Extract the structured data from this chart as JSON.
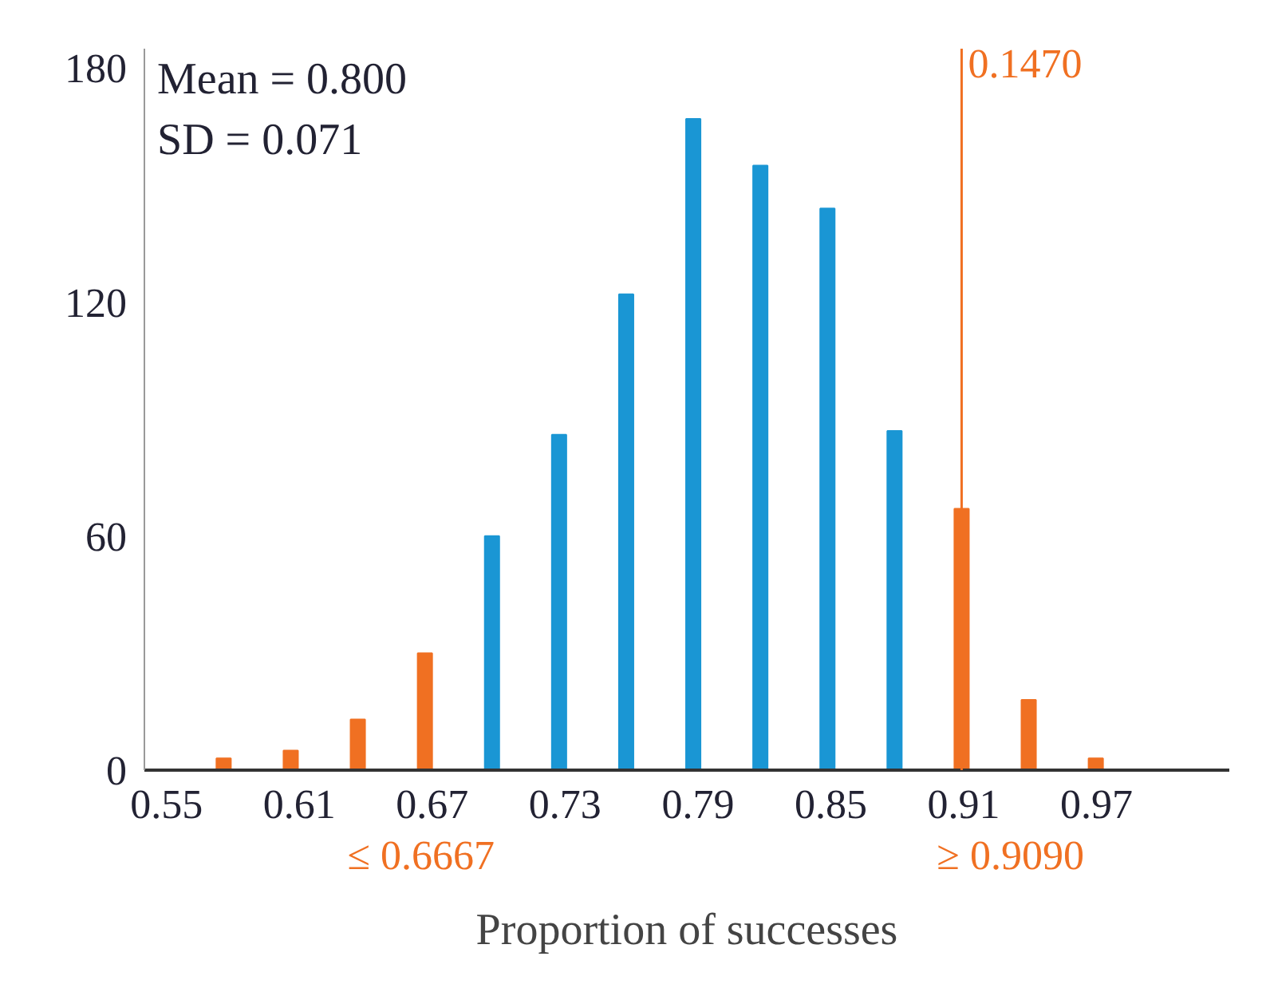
{
  "chart_data": {
    "type": "bar",
    "xlabel": "Proportion of successes",
    "x": [
      0.5758,
      0.6061,
      0.6364,
      0.6667,
      0.697,
      0.7273,
      0.7576,
      0.7879,
      0.8182,
      0.8485,
      0.8788,
      0.9091,
      0.9394,
      0.9697
    ],
    "values": [
      3,
      5,
      13,
      30,
      60,
      86,
      122,
      167,
      155,
      144,
      87,
      67,
      18,
      3
    ],
    "colors": [
      "#f07022",
      "#f07022",
      "#f07022",
      "#f07022",
      "#1a96d4",
      "#1a96d4",
      "#1a96d4",
      "#1a96d4",
      "#1a96d4",
      "#1a96d4",
      "#1a96d4",
      "#f07022",
      "#f07022",
      "#f07022"
    ],
    "xlim": [
      0.54,
      1.03
    ],
    "ylim": [
      0,
      185
    ],
    "xticks": [
      0.55,
      0.61,
      0.67,
      0.73,
      0.79,
      0.85,
      0.91,
      0.97
    ],
    "yticks": [
      0,
      60,
      120,
      180
    ],
    "grid": false,
    "ref_lines": [
      {
        "axis": "x",
        "value": 0.9091,
        "color": "#f07022"
      }
    ],
    "annotations": [
      "Mean = 0.800",
      "SD = 0.071",
      "0.1470",
      "≤ 0.6667",
      "≥ 0.9090"
    ]
  }
}
